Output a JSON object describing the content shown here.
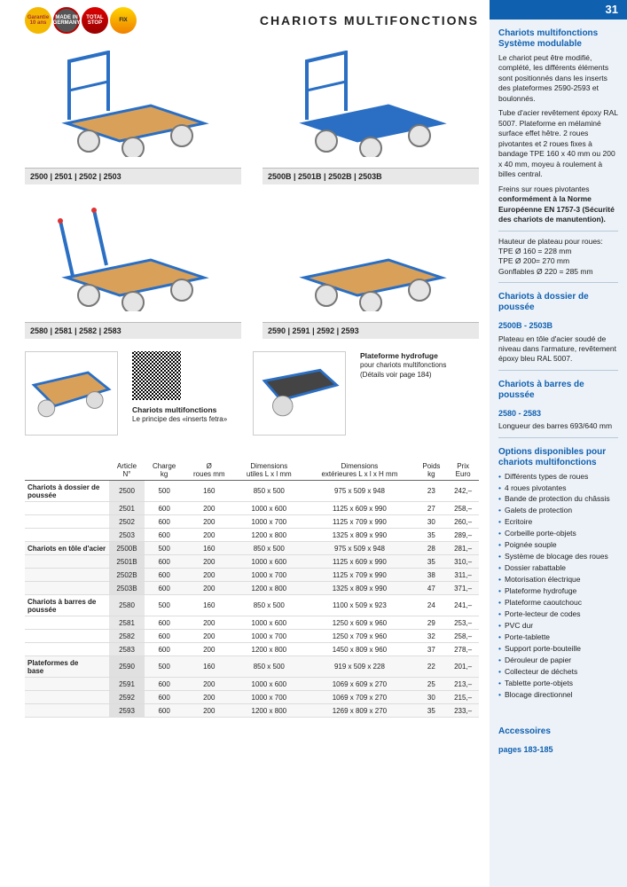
{
  "header": {
    "title": "CHARIOTS MULTIFONCTIONS",
    "page_number": "31",
    "badges": [
      {
        "label": "Garantie 10 ans",
        "class": "b1"
      },
      {
        "label": "MADE IN GERMANY",
        "class": "b2"
      },
      {
        "label": "TOTAL STOP",
        "class": "b3"
      },
      {
        "label": "FIX",
        "class": "b4"
      }
    ]
  },
  "products": [
    {
      "caption": "2500 | 2501 | 2502 | 2503",
      "variant": "wood_handle"
    },
    {
      "caption": "2500B | 2501B | 2502B | 2503B",
      "variant": "blue_handle"
    },
    {
      "caption": "2580 | 2581 | 2582 | 2583",
      "variant": "wood_bars"
    },
    {
      "caption": "2590 | 2591 | 2592 | 2593",
      "variant": "wood_flat"
    }
  ],
  "small_blocks": {
    "qr_title": "Chariots multifonctions",
    "qr_sub": "Le principe des «inserts fetra»",
    "hydro_title": "Plateforme hydrofuge",
    "hydro_sub1": "pour chariots multifonctions",
    "hydro_sub2": "(Détails voir page 184)"
  },
  "table": {
    "columns": [
      "",
      "Article N°",
      "Charge kg",
      "Ø roues mm",
      "Dimensions utiles L x l mm",
      "Dimensions extérieures L x l x H mm",
      "Poids kg",
      "Prix Euro"
    ],
    "groups": [
      {
        "label": "Chariots à dossier de poussée",
        "rows": [
          [
            "2500",
            "500",
            "160",
            "850 x 500",
            "975 x 509 x 948",
            "23",
            "242,–"
          ],
          [
            "2501",
            "600",
            "200",
            "1000 x 600",
            "1125 x 609 x 990",
            "27",
            "258,–"
          ],
          [
            "2502",
            "600",
            "200",
            "1000 x 700",
            "1125 x 709 x 990",
            "30",
            "260,–"
          ],
          [
            "2503",
            "600",
            "200",
            "1200 x 800",
            "1325 x 809 x 990",
            "35",
            "289,–"
          ]
        ]
      },
      {
        "label": "Chariots en tôle d'acier",
        "rows": [
          [
            "2500B",
            "500",
            "160",
            "850 x 500",
            "975 x 509 x 948",
            "28",
            "281,–"
          ],
          [
            "2501B",
            "600",
            "200",
            "1000 x 600",
            "1125 x 609 x 990",
            "35",
            "310,–"
          ],
          [
            "2502B",
            "600",
            "200",
            "1000 x 700",
            "1125 x 709 x 990",
            "38",
            "311,–"
          ],
          [
            "2503B",
            "600",
            "200",
            "1200 x 800",
            "1325 x 809 x 990",
            "47",
            "371,–"
          ]
        ]
      },
      {
        "label": "Chariots à barres de poussée",
        "rows": [
          [
            "2580",
            "500",
            "160",
            "850 x 500",
            "1100 x 509 x 923",
            "24",
            "241,–"
          ],
          [
            "2581",
            "600",
            "200",
            "1000 x 600",
            "1250 x 609 x 960",
            "29",
            "253,–"
          ],
          [
            "2582",
            "600",
            "200",
            "1000 x 700",
            "1250 x 709 x 960",
            "32",
            "258,–"
          ],
          [
            "2583",
            "600",
            "200",
            "1200 x 800",
            "1450 x 809 x 960",
            "37",
            "278,–"
          ]
        ]
      },
      {
        "label": "Plateformes de base",
        "rows": [
          [
            "2590",
            "500",
            "160",
            "850 x 500",
            "919 x 509 x 228",
            "22",
            "201,–"
          ],
          [
            "2591",
            "600",
            "200",
            "1000 x 600",
            "1069 x 609 x 270",
            "25",
            "213,–"
          ],
          [
            "2592",
            "600",
            "200",
            "1000 x 700",
            "1069 x 709 x 270",
            "30",
            "215,–"
          ],
          [
            "2593",
            "600",
            "200",
            "1200 x 800",
            "1269 x 809 x 270",
            "35",
            "233,–"
          ]
        ]
      }
    ]
  },
  "sidebar": {
    "s1_title": "Chariots multifonctions Système modulable",
    "s1_p1": "Le chariot peut être modifié, complété, les différents éléments sont positionnés dans les inserts des plateformes 2590-2593 et boulonnés.",
    "s1_p2": "Tube d'acier revêtement époxy RAL 5007. Plateforme en mélaminé surface effet hêtre. 2 roues pivotantes et 2 roues fixes à bandage TPE 160 x 40 mm ou 200 x 40 mm, moyeu à roulement à billes central.",
    "s1_p3a": "Freins sur roues pivotantes ",
    "s1_p3b": "conformément à la Norme Européenne EN 1757-3 (Sécurité des chariots de manutention).",
    "s1_p4": "Hauteur de plateau pour roues:",
    "s1_p4a": "TPE Ø 160 = 228 mm",
    "s1_p4b": "TPE Ø 200= 270 mm",
    "s1_p4c": "Gonflables Ø 220 = 285 mm",
    "s2_title": "Chariots à dossier de poussée",
    "s2_sub": "2500B - 2503B",
    "s2_p": "Plateau en tôle d'acier soudé de niveau dans l'armature, revêtement époxy bleu RAL 5007.",
    "s3_title": "Chariots à barres de poussée",
    "s3_sub": "2580 - 2583",
    "s3_p": "Longueur des barres 693/640 mm",
    "s4_title": "Options disponibles pour chariots multifonctions",
    "options": [
      "Différents types de roues",
      "4 roues pivotantes",
      "Bande de protection du châssis",
      "Galets de protection",
      "Ecritoire",
      "Corbeille porte-objets",
      "Poignée souple",
      "Système de blocage des roues",
      "Dossier rabattable",
      "Motorisation électrique",
      "Plateforme hydrofuge",
      "Plateforme caoutchouc",
      "Porte-lecteur de codes",
      "PVC dur",
      "Porte-tablette",
      "Support porte-bouteille",
      "Dérouleur de papier",
      "Collecteur de déchets",
      "Tablette porte-objets",
      "Blocage directionnel"
    ],
    "acc_title": "Accessoires",
    "acc_sub": "pages 183-185"
  },
  "colors": {
    "brand_blue": "#1060b0",
    "frame_blue": "#2a6fc4",
    "wood": "#d9a05a",
    "sidebar_bg": "#ecf2f8",
    "caption_bg": "#e8e8e8"
  }
}
